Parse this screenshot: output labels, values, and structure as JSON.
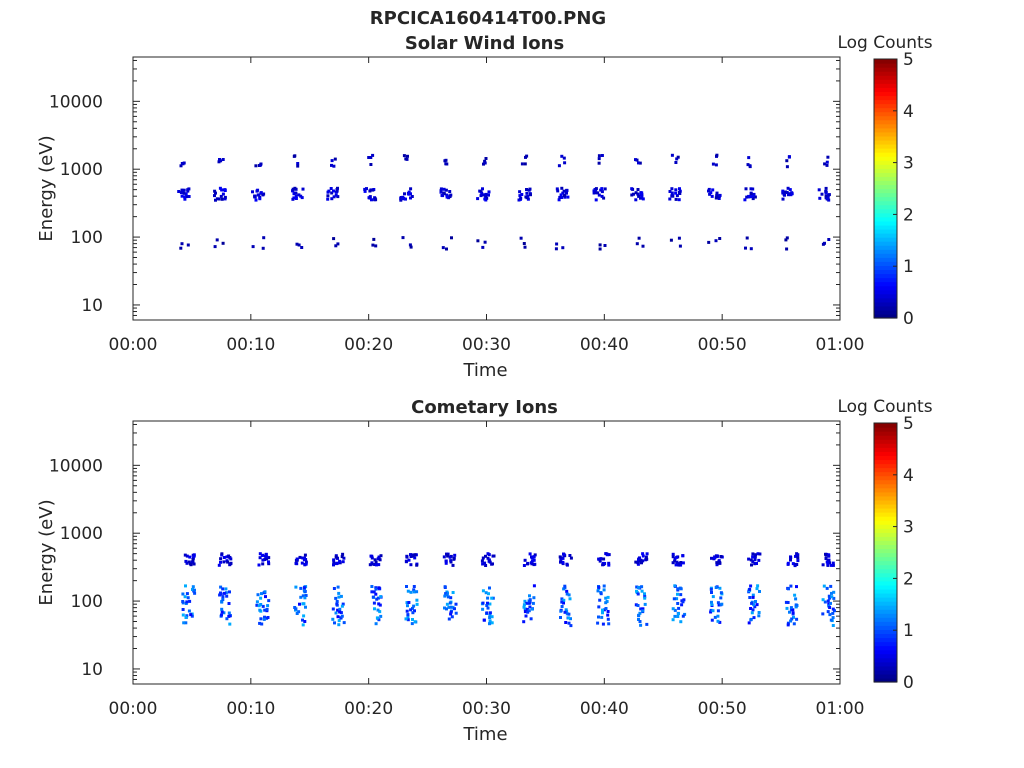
{
  "page": {
    "title": "RPCICA160414T00.PNG"
  },
  "colorbar": {
    "label": "Log Counts",
    "ticks": [
      "0",
      "1",
      "2",
      "3",
      "4",
      "5"
    ],
    "range": [
      0,
      5
    ],
    "colormap": "jet"
  },
  "chart_data": [
    {
      "type": "heatmap",
      "title": "Solar Wind Ions",
      "xlabel": "Time",
      "ylabel": "Energy (eV)",
      "y_scale": "log",
      "ylim": [
        6,
        45000
      ],
      "xlim": [
        "00:00",
        "01:00"
      ],
      "x_ticks": [
        "00:00",
        "00:10",
        "00:20",
        "00:30",
        "00:40",
        "00:50",
        "01:00"
      ],
      "y_ticks": [
        "10",
        "100",
        "1000",
        "10000"
      ],
      "colorbar_label": "Log Counts",
      "bursts_minutes": [
        4.2,
        7.3,
        10.5,
        13.8,
        16.8,
        20.0,
        23.1,
        26.4,
        29.6,
        33.1,
        36.3,
        39.5,
        42.7,
        45.9,
        49.2,
        52.3,
        55.4,
        58.6
      ],
      "bands": [
        {
          "energy_eV": 1400,
          "log_counts": 0.3
        },
        {
          "energy_eV": 450,
          "log_counts": 0.4
        },
        {
          "energy_eV": 85,
          "log_counts": 0.2
        }
      ]
    },
    {
      "type": "heatmap",
      "title": "Cometary Ions",
      "xlabel": "Time",
      "ylabel": "Energy (eV)",
      "y_scale": "log",
      "ylim": [
        6,
        45000
      ],
      "xlim": [
        "00:00",
        "01:00"
      ],
      "x_ticks": [
        "00:00",
        "00:10",
        "00:20",
        "00:30",
        "00:40",
        "00:50",
        "01:00"
      ],
      "y_ticks": [
        "10",
        "100",
        "1000",
        "10000"
      ],
      "colorbar_label": "Log Counts",
      "bursts_minutes": [
        4.6,
        7.7,
        10.9,
        14.1,
        17.3,
        20.5,
        23.5,
        26.8,
        30.0,
        33.5,
        36.6,
        39.8,
        43.0,
        46.2,
        49.4,
        52.6,
        55.8,
        58.9
      ],
      "bands": [
        {
          "energy_eV": 430,
          "log_counts": 0.4
        },
        {
          "energy_eV": 90,
          "log_counts": 1.0
        }
      ]
    }
  ]
}
